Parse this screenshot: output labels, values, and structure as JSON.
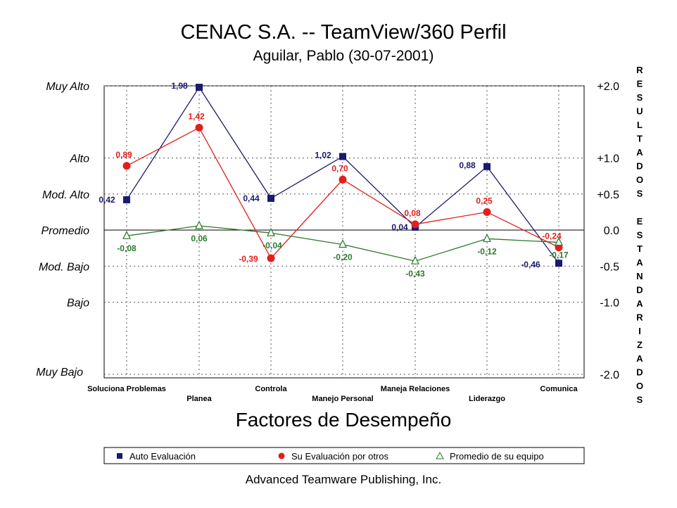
{
  "chart_data": {
    "type": "line",
    "title": "CENAC S.A. -- TeamView/360 Perfil",
    "subtitle": "Aguilar, Pablo  (30-07-2001)",
    "xlabel": "Factores de Desempeño",
    "ylabel_right": "RESULTADOS ESTANDARIZADOS",
    "footer": "Advanced Teamware Publishing, Inc.",
    "categories": [
      "Soluciona Problemas",
      "Planea",
      "Controla",
      "Manejo Personal",
      "Maneja Relaciones",
      "Liderazgo",
      "Comunica"
    ],
    "ylim": [
      -2.0,
      2.0
    ],
    "left_ticks": [
      {
        "value": 2.0,
        "label": "Muy Alto"
      },
      {
        "value": 1.0,
        "label": "Alto"
      },
      {
        "value": 0.5,
        "label": "Mod. Alto"
      },
      {
        "value": 0.0,
        "label": "Promedio"
      },
      {
        "value": -0.5,
        "label": "Mod. Bajo"
      },
      {
        "value": -1.0,
        "label": "Bajo"
      },
      {
        "value": -2.0,
        "label": "Muy Bajo"
      }
    ],
    "right_ticks": [
      {
        "value": 2.0,
        "label": "+2.0"
      },
      {
        "value": 1.0,
        "label": "+1.0"
      },
      {
        "value": 0.5,
        "label": "+0.5"
      },
      {
        "value": 0.0,
        "label": "0.0"
      },
      {
        "value": -0.5,
        "label": "-0.5"
      },
      {
        "value": -1.0,
        "label": "-1.0"
      },
      {
        "value": -2.0,
        "label": "-2.0"
      }
    ],
    "series": [
      {
        "name": "Auto Evaluación",
        "color": "#1a1a6e",
        "marker": "square",
        "values": [
          0.42,
          1.98,
          0.44,
          1.02,
          0.04,
          0.88,
          -0.46
        ],
        "labels": [
          "0,42",
          "1,98",
          "0,44",
          "1,02",
          "0,04",
          "0,88",
          "-0,46"
        ]
      },
      {
        "name": "Su Evaluación por otros",
        "color": "#e0201c",
        "marker": "circle",
        "values": [
          0.89,
          1.42,
          -0.39,
          0.7,
          0.08,
          0.25,
          -0.24
        ],
        "labels": [
          "0,89",
          "1,42",
          "-0,39",
          "0,70",
          "0,08",
          "0,25",
          "-0,24"
        ]
      },
      {
        "name": "Promedio de su equipo",
        "color": "#2a7a2a",
        "marker": "triangle",
        "values": [
          -0.08,
          0.06,
          -0.04,
          -0.2,
          -0.43,
          -0.12,
          -0.17
        ],
        "labels": [
          "-0,08",
          "0,06",
          "-0,04",
          "-0,20",
          "-0,43",
          "-0,12",
          "-0,17"
        ]
      }
    ],
    "grid": true,
    "legend": "bottom"
  }
}
